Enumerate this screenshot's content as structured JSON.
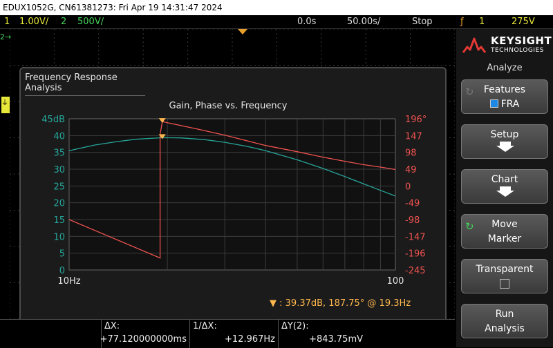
{
  "title_bar": "EDUX1052G, CN61381273: Fri Apr 19 14:31:47 2024",
  "status": {
    "ch1_num": "1",
    "ch1_scale": "1.00V/",
    "ch2_num": "2",
    "ch2_scale": "500V/",
    "time_delay": "0.0s",
    "time_scale": "50.00s/",
    "run_state": "Stop",
    "trig_source": "1",
    "trig_level": "275V"
  },
  "fra": {
    "window_title": "Frequency Response Analysis",
    "marker_readout": "39.37dB, 187.75° @ 19.3Hz"
  },
  "chart_data": {
    "type": "line",
    "title": "Gain, Phase vs. Frequency",
    "x_scale": "log",
    "xlim": [
      10,
      100
    ],
    "x_ticks": [
      "10Hz",
      "100"
    ],
    "y_left": {
      "ticks": [
        "45dB",
        "40",
        "35",
        "30",
        "25",
        "20",
        "15",
        "10",
        "5",
        "0"
      ],
      "lim": [
        0,
        45
      ],
      "color": "#26a69a"
    },
    "y_right": {
      "ticks": [
        "196°",
        "147",
        "98",
        "49",
        "0",
        "-49",
        "-98",
        "-147",
        "-196",
        "-245"
      ],
      "lim": [
        -245,
        196
      ],
      "color": "#ef5350"
    },
    "series": [
      {
        "axis": "left",
        "color": "#26a69a",
        "x": [
          10,
          12,
          14,
          16,
          19.3,
          22,
          26,
          30,
          35,
          40,
          50,
          60,
          70,
          80,
          90,
          100
        ],
        "y": [
          35.5,
          37.2,
          38.2,
          38.9,
          39.37,
          39.3,
          38.8,
          38.0,
          36.8,
          35.5,
          32.8,
          30.2,
          27.8,
          25.6,
          23.7,
          22.0
        ]
      },
      {
        "axis": "right",
        "color": "#ef5350",
        "x": [
          10,
          19.0,
          19.0,
          19.3,
          25,
          30,
          40,
          50,
          60,
          70,
          80,
          90,
          100
        ],
        "y": [
          -98,
          -210,
          150,
          187.75,
          165,
          148,
          118,
          100,
          84,
          72,
          62,
          55,
          48
        ]
      }
    ],
    "marker": {
      "x": 19.3,
      "gain_db": 39.37,
      "phase_deg": 187.75
    }
  },
  "sidebar": {
    "logo_line1": "KEYSIGHT",
    "logo_line2": "TECHNOLOGIES",
    "heading": "Analyze",
    "features_label": "Features",
    "features_value": "FRA",
    "setup_label": "Setup",
    "chart_label": "Chart",
    "move_label1": "Move",
    "move_label2": "Marker",
    "transparent_label": "Transparent",
    "run_label1": "Run",
    "run_label2": "Analysis"
  },
  "bottom": {
    "dx_label": "ΔX:",
    "dx_value": "+77.120000000ms",
    "inv_dx_label": "1/ΔX:",
    "inv_dx_value": "+12.967Hz",
    "dy_label": "ΔY(2):",
    "dy_value": "+843.75mV"
  },
  "colors": {
    "ch1": "#e8e83a",
    "ch2": "#46d35a",
    "marker": "#ffb74d",
    "gain": "#26a69a",
    "phase": "#ef5350"
  },
  "icons": {
    "knob": "rotate-knob-icon",
    "arrow": "arrow-down-icon"
  }
}
